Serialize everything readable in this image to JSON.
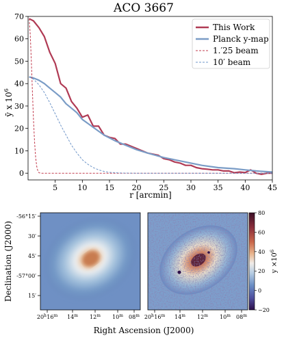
{
  "chart_data": [
    {
      "type": "line",
      "title": "ACO 3667",
      "xlabel": "r [arcmin]",
      "ylabel": "ȳ x 10⁶",
      "xlim": [
        0,
        45
      ],
      "ylim": [
        -3,
        70
      ],
      "x_ticks": [
        5,
        10,
        15,
        20,
        25,
        30,
        35,
        40,
        45
      ],
      "y_ticks": [
        0,
        10,
        20,
        30,
        40,
        50,
        60,
        70
      ],
      "legend_position": "top-right",
      "series": [
        {
          "name": "This Work",
          "color": "#b03a54",
          "style": "solid",
          "x": [
            0.2,
            1,
            2,
            3,
            4,
            5,
            6,
            7,
            8,
            9,
            10,
            11,
            12,
            13,
            14,
            15,
            16,
            17,
            18,
            19,
            20,
            21,
            22,
            23,
            24,
            25,
            26,
            27,
            28,
            29,
            30,
            31,
            32,
            33,
            34,
            35,
            36,
            37,
            38,
            39,
            40,
            41,
            42,
            43,
            44,
            45
          ],
          "y": [
            69,
            68,
            65,
            61,
            54,
            49,
            40,
            38,
            32,
            29,
            25,
            26,
            21,
            21,
            17,
            16,
            15.5,
            13,
            13,
            12,
            11,
            10,
            9,
            8.5,
            8,
            6.5,
            6,
            5,
            4.5,
            3.5,
            3.5,
            2.5,
            2,
            1.8,
            1.5,
            1.5,
            1,
            1,
            0.2,
            0.5,
            0.3,
            1.5,
            0,
            -0.5,
            0,
            0
          ]
        },
        {
          "name": "Planck y-map",
          "color": "#7a9cc6",
          "style": "solid",
          "x": [
            0.2,
            1,
            2,
            3,
            4,
            5,
            6,
            7,
            8,
            9,
            10,
            12,
            14,
            16,
            18,
            20,
            22,
            25,
            28,
            30,
            32,
            35,
            38,
            40,
            42,
            45
          ],
          "y": [
            43,
            42.5,
            41.5,
            40,
            38,
            36,
            34,
            31,
            29,
            27,
            24,
            20.5,
            17,
            14.5,
            12.5,
            10.5,
            9,
            7,
            5.5,
            4.5,
            3.5,
            2.5,
            2,
            1.5,
            1,
            0.5
          ]
        },
        {
          "name": "1.′25 beam",
          "color": "#c23b4d",
          "style": "dashed",
          "x": [
            0.2,
            0.4,
            0.6,
            0.8,
            1.0,
            1.2,
            1.4,
            1.6,
            1.8,
            2.0,
            2.5,
            45
          ],
          "y": [
            69,
            62,
            50,
            37,
            24,
            14,
            7,
            3,
            1,
            0.2,
            0,
            0
          ]
        },
        {
          "name": "10′ beam",
          "color": "#6e95c8",
          "style": "dashed",
          "x": [
            0.2,
            1,
            2,
            3,
            4,
            5,
            6,
            7,
            8,
            9,
            10,
            11,
            12,
            13,
            14,
            15,
            17,
            20,
            45
          ],
          "y": [
            43,
            42,
            39.5,
            36,
            31.5,
            26.5,
            21.5,
            17,
            12.5,
            9,
            6,
            4,
            2.5,
            1.5,
            0.8,
            0.4,
            0.1,
            0,
            0
          ]
        }
      ]
    },
    {
      "type": "heatmap",
      "panel": "Planck y-map",
      "xlabel": "Right Ascension (J2000)",
      "ylabel": "Declination (J2000)",
      "x_tick_labels": [
        "20h16m",
        "14m",
        "12m",
        "10m",
        "08m"
      ],
      "y_tick_labels": [
        "-56°15′",
        "30′",
        "45′",
        "-57°00′",
        "15′"
      ]
    },
    {
      "type": "heatmap",
      "panel": "This Work",
      "xlabel": "Right Ascension (J2000)",
      "x_tick_labels": [
        "20h16m",
        "14m",
        "12m",
        "10m",
        "08m"
      ],
      "colorbar": {
        "label": "y ×10⁶",
        "ticks": [
          80,
          60,
          40,
          20,
          0,
          -20
        ],
        "range": [
          -20,
          80
        ]
      }
    }
  ],
  "labels": {
    "title": "ACO 3667",
    "xlabel": "r [arcmin]",
    "ylabel_main": "ȳ",
    "ylabel_rest": " x 10",
    "ylabel_exp": "6",
    "legend": [
      "This Work",
      "Planck y-map",
      "1.′25 beam",
      "10′ beam"
    ],
    "ra_label": "Right Ascension (J2000)",
    "dec_label": "Declination (J2000)",
    "dec_ticks": [
      "-56°15′",
      "30′",
      "45′",
      "-57°00′",
      "15′"
    ],
    "ra_ticks": [
      {
        "h": "20",
        "hu": "h",
        "m": "16",
        "mu": "m"
      },
      {
        "h": "",
        "hu": "",
        "m": "14",
        "mu": "m"
      },
      {
        "h": "",
        "hu": "",
        "m": "12",
        "mu": "m"
      },
      {
        "h": "",
        "hu": "",
        "m": "10",
        "mu": "m"
      },
      {
        "h": "",
        "hu": "",
        "m": "08",
        "mu": "m"
      }
    ],
    "cb_label": "y ×10",
    "cb_exp": "6",
    "cb_ticks": [
      "80",
      "60",
      "40",
      "20",
      "0",
      "−20"
    ]
  }
}
